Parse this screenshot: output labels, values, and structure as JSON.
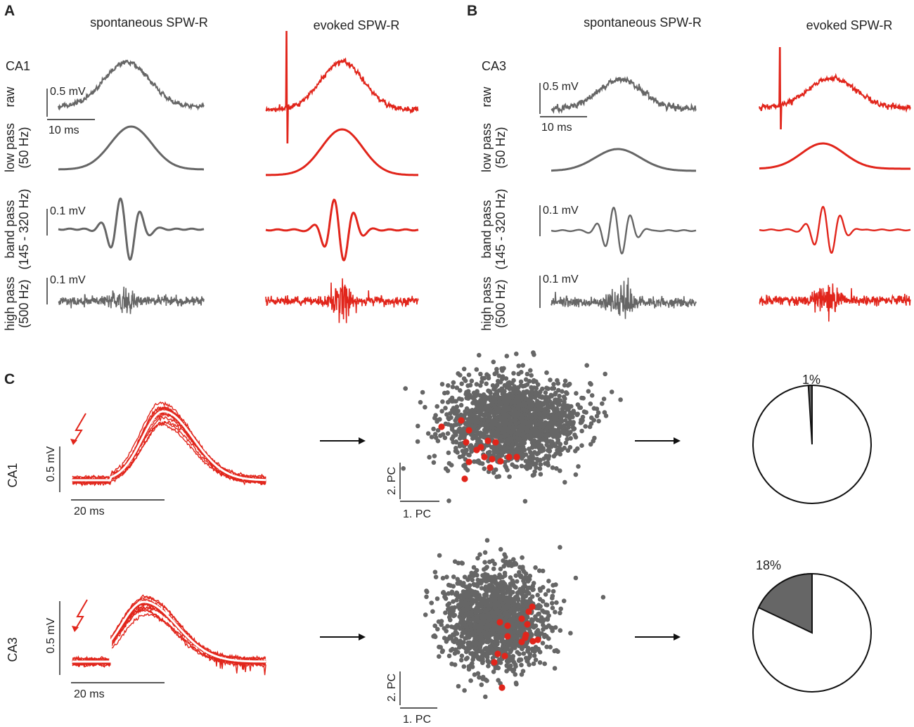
{
  "panels": {
    "A": {
      "letter": "A",
      "region": "CA1",
      "spontaneous_title": "spontaneous SPW-R",
      "evoked_title": "evoked SPW-R",
      "scale_raw": "0.5 mV",
      "scale_time": "10 ms",
      "scale_band": "0.1 mV",
      "scale_high": "0.1 mV"
    },
    "B": {
      "letter": "B",
      "region": "CA3",
      "spontaneous_title": "spontaneous SPW-R",
      "evoked_title": "evoked SPW-R",
      "scale_raw": "0.5 mV",
      "scale_time": "10 ms",
      "scale_band": "0.1 mV",
      "scale_high": "0.1 mV"
    },
    "C": {
      "letter": "C",
      "rows": [
        {
          "region": "CA1",
          "scale_v": "0.5 mV",
          "scale_t": "20 ms",
          "pc1": "1. PC",
          "pc2": "2. PC",
          "pie_label": "1%",
          "evoked_fraction": 0.01
        },
        {
          "region": "CA3",
          "scale_v": "0.5 mV",
          "scale_t": "20 ms",
          "pc1": "1. PC",
          "pc2": "2. PC",
          "pie_label": "18%",
          "evoked_fraction": 0.18
        }
      ]
    }
  },
  "row_labels": {
    "raw": [
      "raw"
    ],
    "low": [
      "low pass",
      "(50 Hz)"
    ],
    "band": [
      "band pass",
      "(145 - 320 Hz)"
    ],
    "high": [
      "high pass",
      "(500 Hz)"
    ]
  },
  "colors": {
    "spontaneous": "#666666",
    "evoked": "#e1251b",
    "text": "#222222",
    "pie_fill": "#666666"
  }
}
